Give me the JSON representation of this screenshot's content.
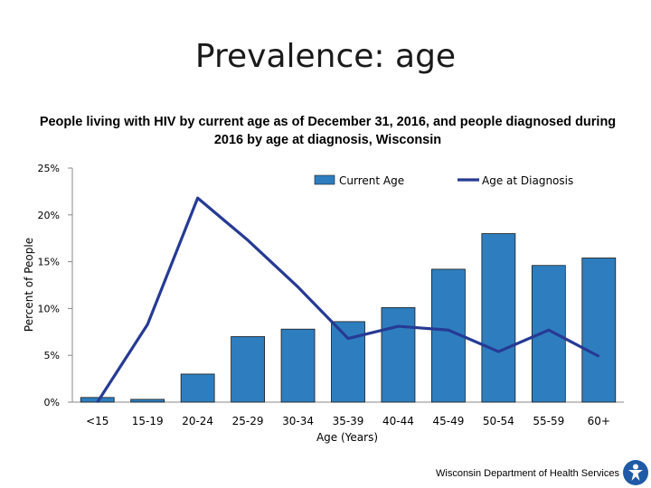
{
  "slide": {
    "title": "Prevalence: age",
    "footer": "Wisconsin Department of Health Services",
    "logo_icon": "person-circle-logo"
  },
  "chart_data": {
    "type": "bar",
    "title": "People living with HIV by current age as of December 31, 2016, and people diagnosed during 2016 by age at diagnosis, Wisconsin",
    "xlabel": "Age (Years)",
    "ylabel": "Percent of People",
    "ylim": [
      0,
      25
    ],
    "yticks": [
      "0%",
      "5%",
      "10%",
      "15%",
      "20%",
      "25%"
    ],
    "ytick_values": [
      0,
      5,
      10,
      15,
      20,
      25
    ],
    "categories": [
      "<15",
      "15-19",
      "20-24",
      "25-29",
      "30-34",
      "35-39",
      "40-44",
      "45-49",
      "50-54",
      "55-59",
      "60+"
    ],
    "series": [
      {
        "name": "Current Age",
        "type": "bar",
        "color": "#2e7ebf",
        "values": [
          0.5,
          0.3,
          3.0,
          7.0,
          7.8,
          8.6,
          10.1,
          14.2,
          18.0,
          14.6,
          15.4
        ]
      },
      {
        "name": "Age at Diagnosis",
        "type": "line",
        "color": "#263a94",
        "values": [
          0.0,
          8.3,
          21.8,
          17.3,
          12.3,
          6.8,
          8.1,
          7.7,
          5.4,
          7.7,
          4.9
        ]
      }
    ],
    "legend_position": "top-right"
  }
}
